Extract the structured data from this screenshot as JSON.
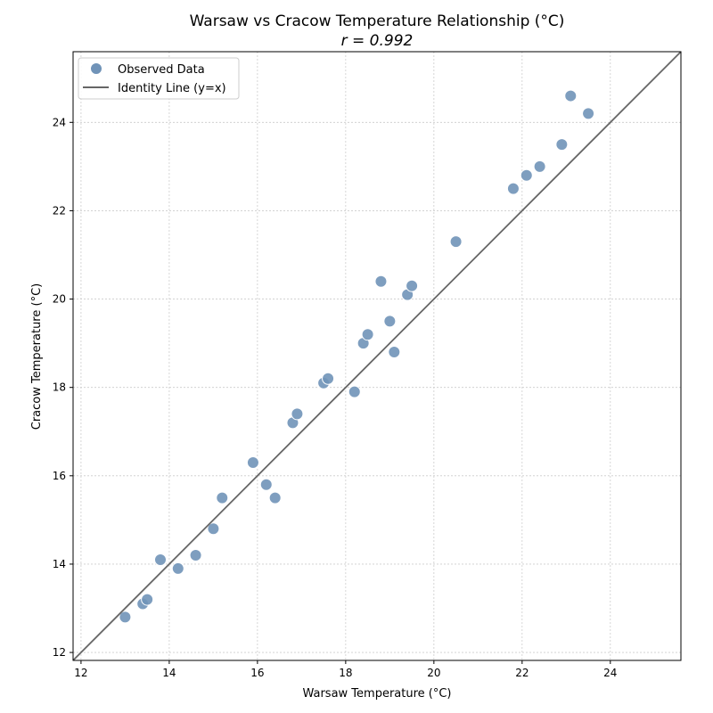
{
  "chart_data": {
    "type": "scatter",
    "title": "Warsaw vs Cracow Temperature Relationship (°C)",
    "subtitle": "r = 0.992",
    "xlabel": "Warsaw Temperature (°C)",
    "ylabel": "Cracow Temperature (°C)",
    "xlim": [
      11.82,
      25.6
    ],
    "ylim": [
      11.82,
      25.6
    ],
    "xticks": [
      12,
      14,
      16,
      18,
      20,
      22,
      24
    ],
    "yticks": [
      12,
      14,
      16,
      18,
      20,
      22,
      24
    ],
    "grid": true,
    "legend_position": "top-left",
    "series": [
      {
        "name": "Observed Data",
        "kind": "scatter",
        "color": "#7093b8",
        "x": [
          13.0,
          13.4,
          13.5,
          13.8,
          14.2,
          14.6,
          15.0,
          15.2,
          15.9,
          16.2,
          16.4,
          16.8,
          16.9,
          17.5,
          17.6,
          18.2,
          18.4,
          18.5,
          18.8,
          19.0,
          19.1,
          19.4,
          19.5,
          20.5,
          21.8,
          22.1,
          22.4,
          22.9,
          23.1,
          23.5
        ],
        "y": [
          12.8,
          13.1,
          13.2,
          14.1,
          13.9,
          14.2,
          14.8,
          15.5,
          16.3,
          15.8,
          15.5,
          17.2,
          17.4,
          18.1,
          18.2,
          17.9,
          19.0,
          19.2,
          20.4,
          19.5,
          18.8,
          20.1,
          20.3,
          21.3,
          22.5,
          22.8,
          23.0,
          23.5,
          24.6,
          24.2
        ]
      },
      {
        "name": "Identity Line (y=x)",
        "kind": "line",
        "color": "#666666"
      }
    ]
  }
}
